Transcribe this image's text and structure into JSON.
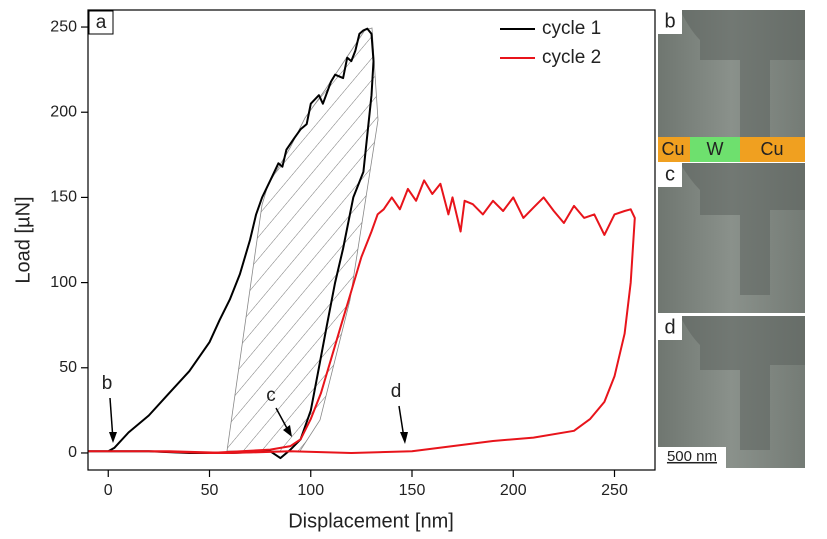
{
  "chart_data": {
    "type": "line",
    "xlabel": "Displacement [nm]",
    "ylabel": "Load [µN]",
    "xlim": [
      -10,
      270
    ],
    "ylim": [
      -10,
      260
    ],
    "xticks": [
      0,
      50,
      100,
      150,
      200,
      250
    ],
    "yticks": [
      0,
      50,
      100,
      150,
      200,
      250
    ],
    "legend": "upper right",
    "annotations": [
      "a",
      "b",
      "c",
      "d"
    ],
    "series": [
      {
        "name": "cycle 1",
        "color": "#000000",
        "x": [
          -10,
          0,
          3,
          10,
          20,
          30,
          40,
          50,
          55,
          60,
          65,
          70,
          73,
          76,
          78,
          80,
          84,
          86,
          88,
          92,
          95,
          98,
          100,
          104,
          106,
          110,
          112,
          116,
          118,
          120,
          122,
          124,
          126,
          128,
          130,
          131,
          130,
          126,
          121,
          116,
          112,
          108,
          104,
          100,
          95,
          90,
          85,
          80,
          60,
          40,
          20,
          0,
          -10
        ],
        "values": [
          1,
          1,
          3,
          12,
          22,
          35,
          48,
          65,
          78,
          90,
          105,
          125,
          140,
          150,
          155,
          160,
          170,
          168,
          178,
          185,
          190,
          193,
          205,
          210,
          205,
          218,
          222,
          220,
          232,
          230,
          236,
          246,
          248,
          249,
          246,
          230,
          210,
          165,
          150,
          120,
          100,
          75,
          50,
          25,
          8,
          2,
          -3,
          1,
          0,
          0,
          1,
          1,
          1
        ]
      },
      {
        "name": "cycle 2",
        "color": "#e8141b",
        "x": [
          -10,
          20,
          50,
          80,
          90,
          95,
          100,
          105,
          110,
          115,
          120,
          125,
          130,
          133,
          136,
          140,
          144,
          148,
          152,
          156,
          160,
          164,
          168,
          170,
          174,
          176,
          180,
          185,
          190,
          195,
          200,
          205,
          210,
          215,
          220,
          225,
          230,
          235,
          240,
          245,
          250,
          255,
          258,
          260,
          258,
          255,
          250,
          245,
          238,
          230,
          210,
          190,
          170,
          150,
          120,
          90,
          60,
          30,
          -10
        ],
        "values": [
          1,
          1,
          0,
          2,
          4,
          8,
          20,
          35,
          55,
          75,
          95,
          115,
          130,
          140,
          143,
          150,
          143,
          155,
          148,
          160,
          152,
          158,
          140,
          150,
          130,
          148,
          146,
          140,
          148,
          142,
          150,
          138,
          144,
          150,
          142,
          135,
          145,
          138,
          140,
          128,
          140,
          142,
          143,
          138,
          100,
          70,
          45,
          30,
          20,
          13,
          9,
          7,
          4,
          1,
          0,
          1,
          0,
          1,
          1
        ]
      }
    ]
  },
  "images": {
    "labels": [
      "b",
      "c",
      "d"
    ],
    "materials": [
      "Cu",
      "W",
      "Cu"
    ],
    "scale_bar": "500 nm"
  }
}
